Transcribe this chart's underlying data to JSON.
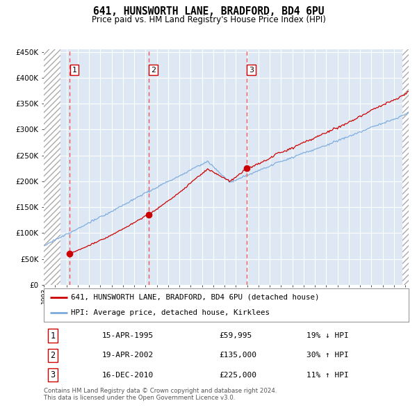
{
  "title": "641, HUNSWORTH LANE, BRADFORD, BD4 6PU",
  "subtitle": "Price paid vs. HM Land Registry's House Price Index (HPI)",
  "legend_property": "641, HUNSWORTH LANE, BRADFORD, BD4 6PU (detached house)",
  "legend_hpi": "HPI: Average price, detached house, Kirklees",
  "footer": "Contains HM Land Registry data © Crown copyright and database right 2024.\nThis data is licensed under the Open Government Licence v3.0.",
  "sales": [
    {
      "num": 1,
      "date": "15-APR-1995",
      "price": 59995,
      "pct": "19% ↓ HPI",
      "year": 1995.29
    },
    {
      "num": 2,
      "date": "19-APR-2002",
      "price": 135000,
      "pct": "30% ↑ HPI",
      "year": 2002.29
    },
    {
      "num": 3,
      "date": "16-DEC-2010",
      "price": 225000,
      "pct": "11% ↑ HPI",
      "year": 2010.96
    }
  ],
  "ylim": [
    0,
    450000
  ],
  "yticks": [
    0,
    50000,
    100000,
    150000,
    200000,
    250000,
    300000,
    350000,
    400000,
    450000
  ],
  "property_color": "#cc0000",
  "hpi_color": "#7aaadd",
  "vline_color": "#ee5555",
  "table_border_color": "#cc0000",
  "background_color": "#ffffff",
  "plot_bg_color": "#dde8f4"
}
